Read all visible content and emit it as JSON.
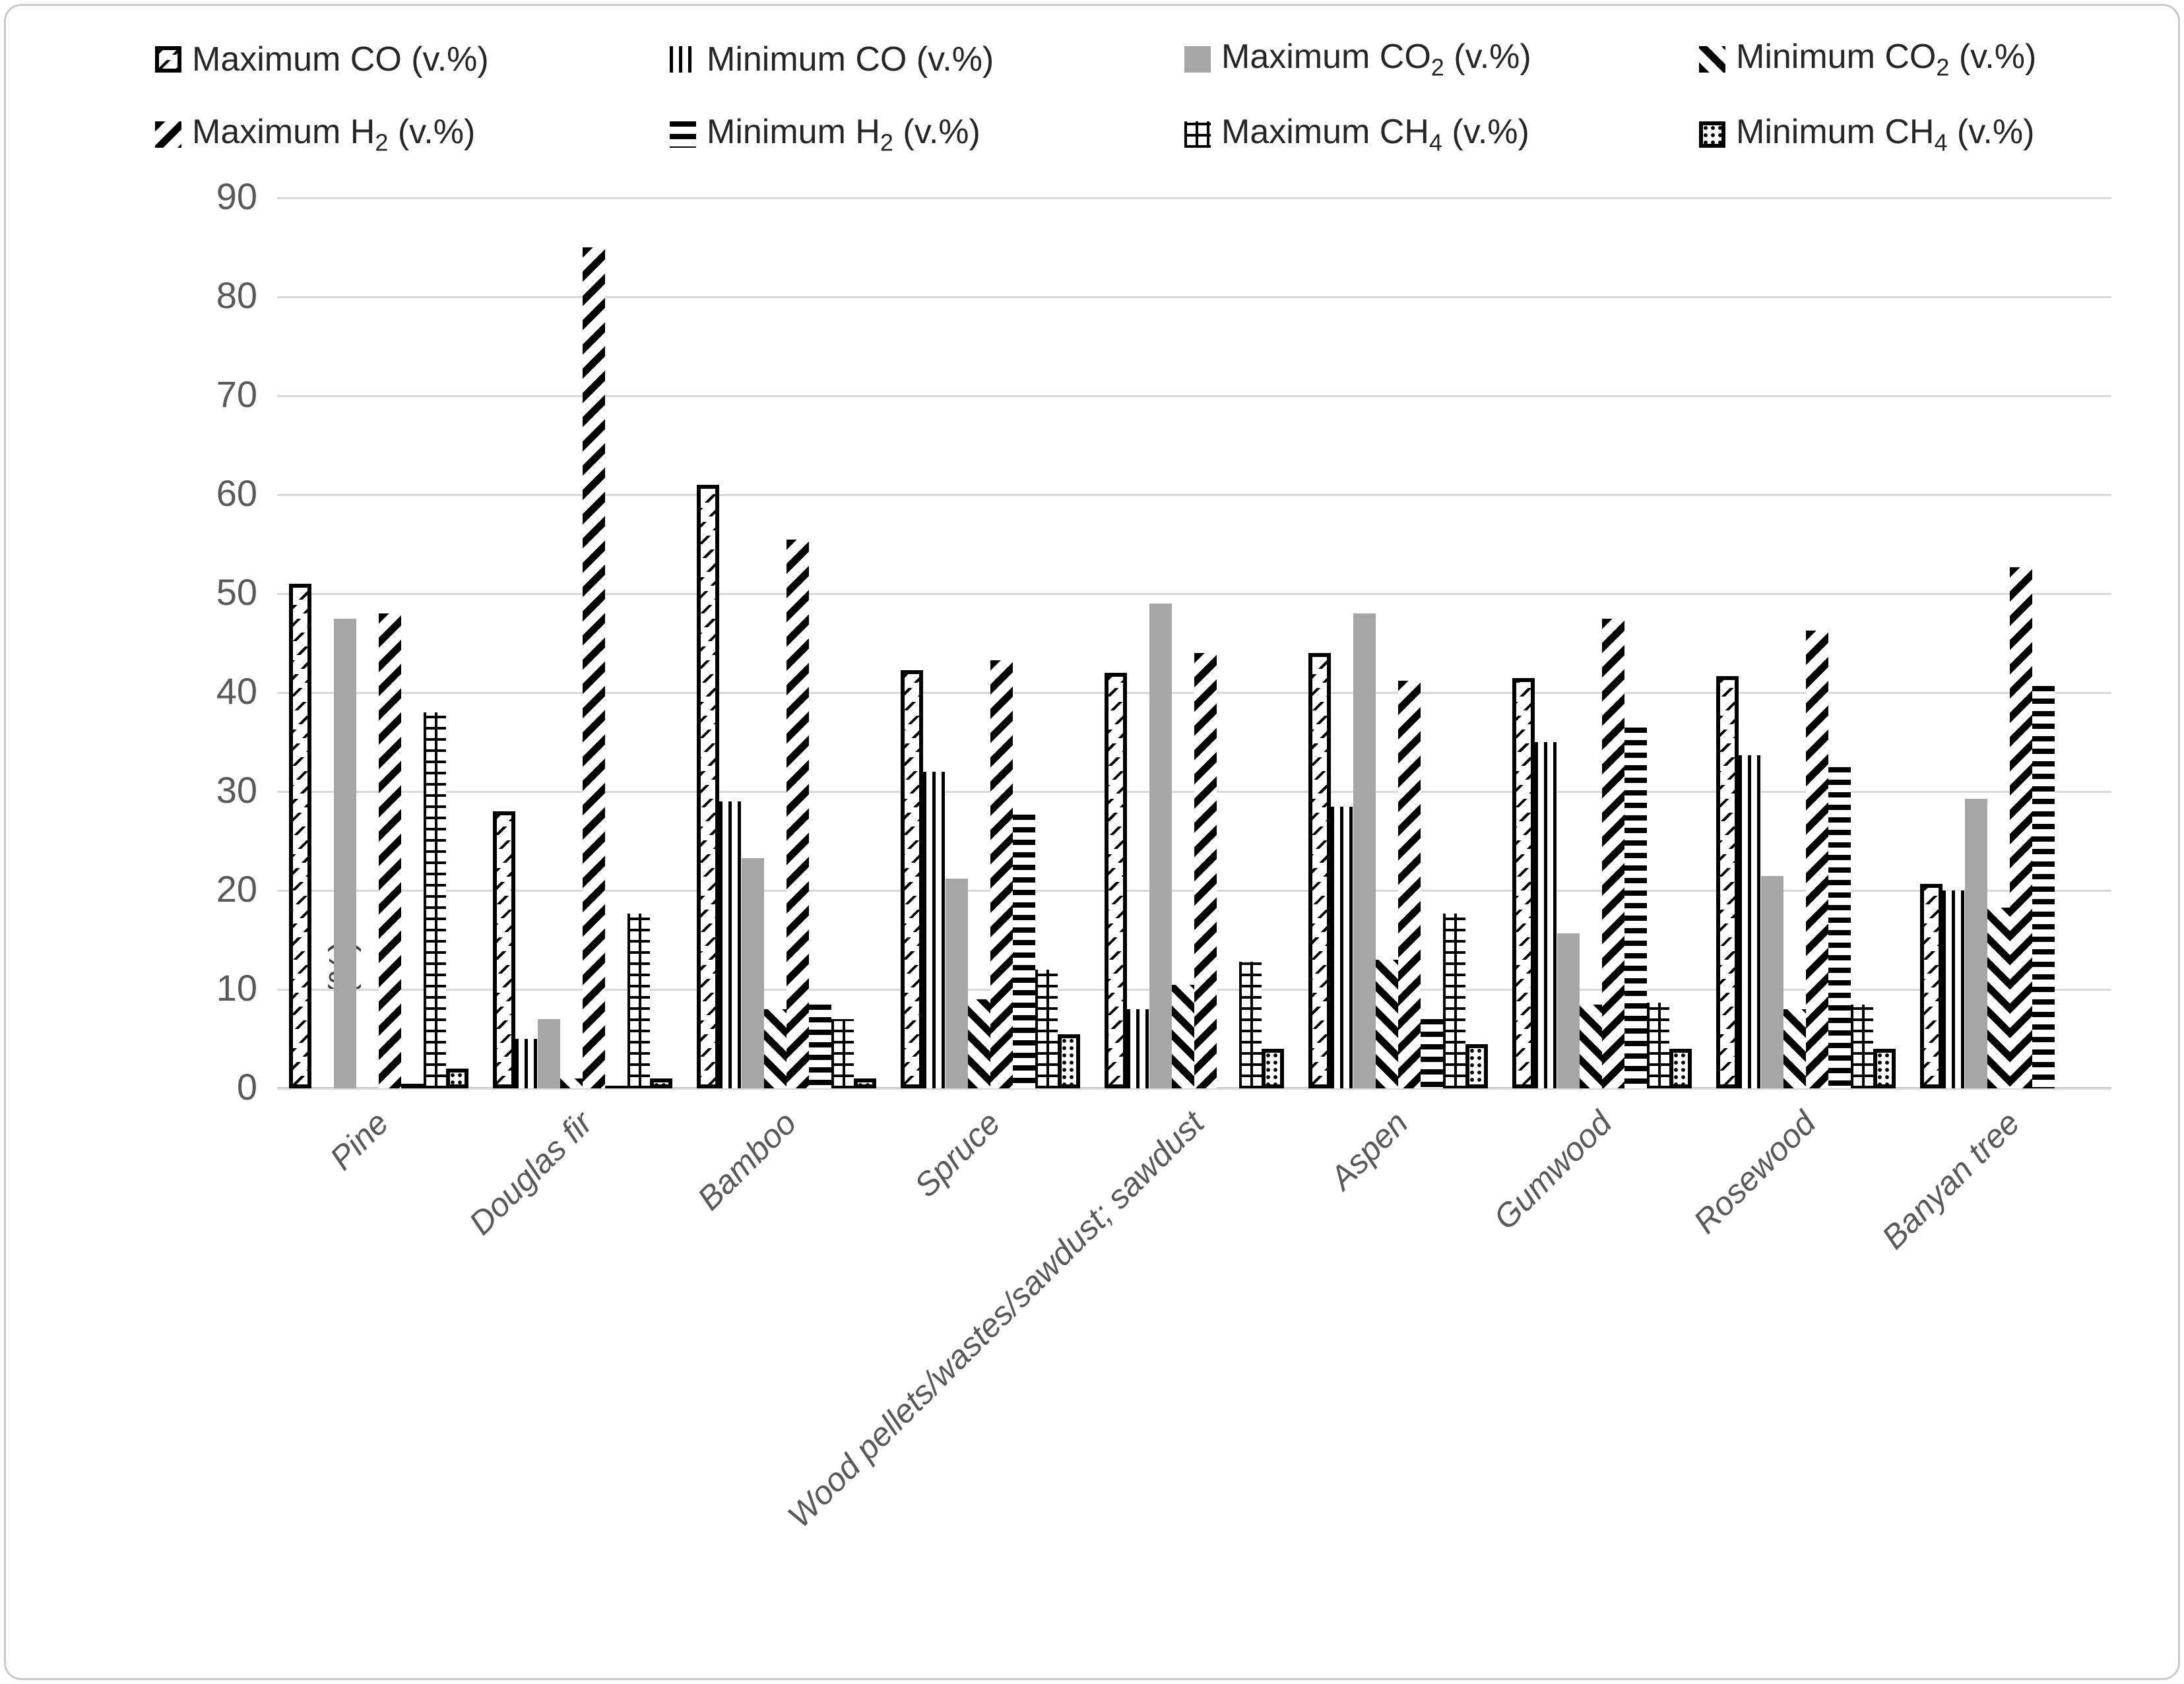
{
  "colors": {
    "gray_fill": "#a6a6a6",
    "bar_black": "#000000",
    "axis_text": "#595959",
    "legend_text": "#262626",
    "gridline": "#d9d9d9",
    "axis_line": "#bfbfbf",
    "page_border": "#c9c9c9",
    "background": "#ffffff"
  },
  "chart_data": {
    "type": "bar",
    "title": "",
    "xlabel": "",
    "ylabel": "v. (%)",
    "ylim": [
      0,
      90
    ],
    "ytick_step": 10,
    "grid": true,
    "legend_position": "top",
    "categories": [
      "Pine",
      "Douglas fir",
      "Bamboo",
      "Spruce",
      "Wood pellets/wastes/sawdust; sawdust",
      "Aspen",
      "Gumwood",
      "Rosewood",
      "Banyan tree"
    ],
    "series": [
      {
        "name": "Maximum CO (v.%)",
        "label_main": "Maximum CO",
        "label_sub": "",
        "label_tail": " (v.%)",
        "pattern": "max-co",
        "values": [
          51,
          28,
          61,
          42.3,
          42,
          44,
          41.5,
          41.7,
          20.7
        ]
      },
      {
        "name": "Minimum CO (v.%)",
        "label_main": "Minimum CO",
        "label_sub": "",
        "label_tail": " (v.%)",
        "pattern": "min-co",
        "values": [
          0,
          5,
          29,
          32,
          8,
          28.5,
          35,
          33.7,
          20
        ]
      },
      {
        "name": "Maximum CO2 (v.%)",
        "label_main": "Maximum CO",
        "label_sub": "2",
        "label_tail": " (v.%)",
        "pattern": "max-co2",
        "values": [
          47.5,
          7,
          23.3,
          21.2,
          49,
          48,
          15.7,
          21.5,
          29.3
        ]
      },
      {
        "name": "Minimum CO2 (v.%)",
        "label_main": "Minimum CO",
        "label_sub": "2",
        "label_tail": " (v.%)",
        "pattern": "min-co2",
        "values": [
          0,
          1,
          8,
          9,
          10.5,
          13,
          8.5,
          8,
          18.3
        ]
      },
      {
        "name": "Maximum H2 (v.%)",
        "label_main": "Maximum H",
        "label_sub": "2",
        "label_tail": " (v.%)",
        "pattern": "max-h2",
        "values": [
          48,
          85,
          55.5,
          43.3,
          44,
          41.2,
          47.5,
          46.3,
          52.7
        ]
      },
      {
        "name": "Minimum H2 (v.%)",
        "label_main": "Minimum H",
        "label_sub": "2",
        "label_tail": " (v.%)",
        "pattern": "min-h2",
        "values": [
          0.5,
          0.3,
          8.5,
          27.7,
          0,
          7,
          36.5,
          32.5,
          40.7
        ]
      },
      {
        "name": "Maximum CH4 (v.%)",
        "label_main": "Maximum CH",
        "label_sub": "4",
        "label_tail": " (v.%)",
        "pattern": "max-ch4",
        "values": [
          38,
          17.7,
          7,
          12,
          12.8,
          17.7,
          8.7,
          8.5,
          0
        ]
      },
      {
        "name": "Minimum CH4 (v.%)",
        "label_main": "Minimum CH",
        "label_sub": "4",
        "label_tail": " (v.%)",
        "pattern": "min-ch4",
        "values": [
          2,
          1,
          1,
          5.5,
          4,
          4.5,
          4,
          4,
          0
        ]
      }
    ]
  },
  "layout_text": {
    "yticks": [
      0,
      10,
      20,
      30,
      40,
      50,
      60,
      70,
      80,
      90
    ]
  }
}
